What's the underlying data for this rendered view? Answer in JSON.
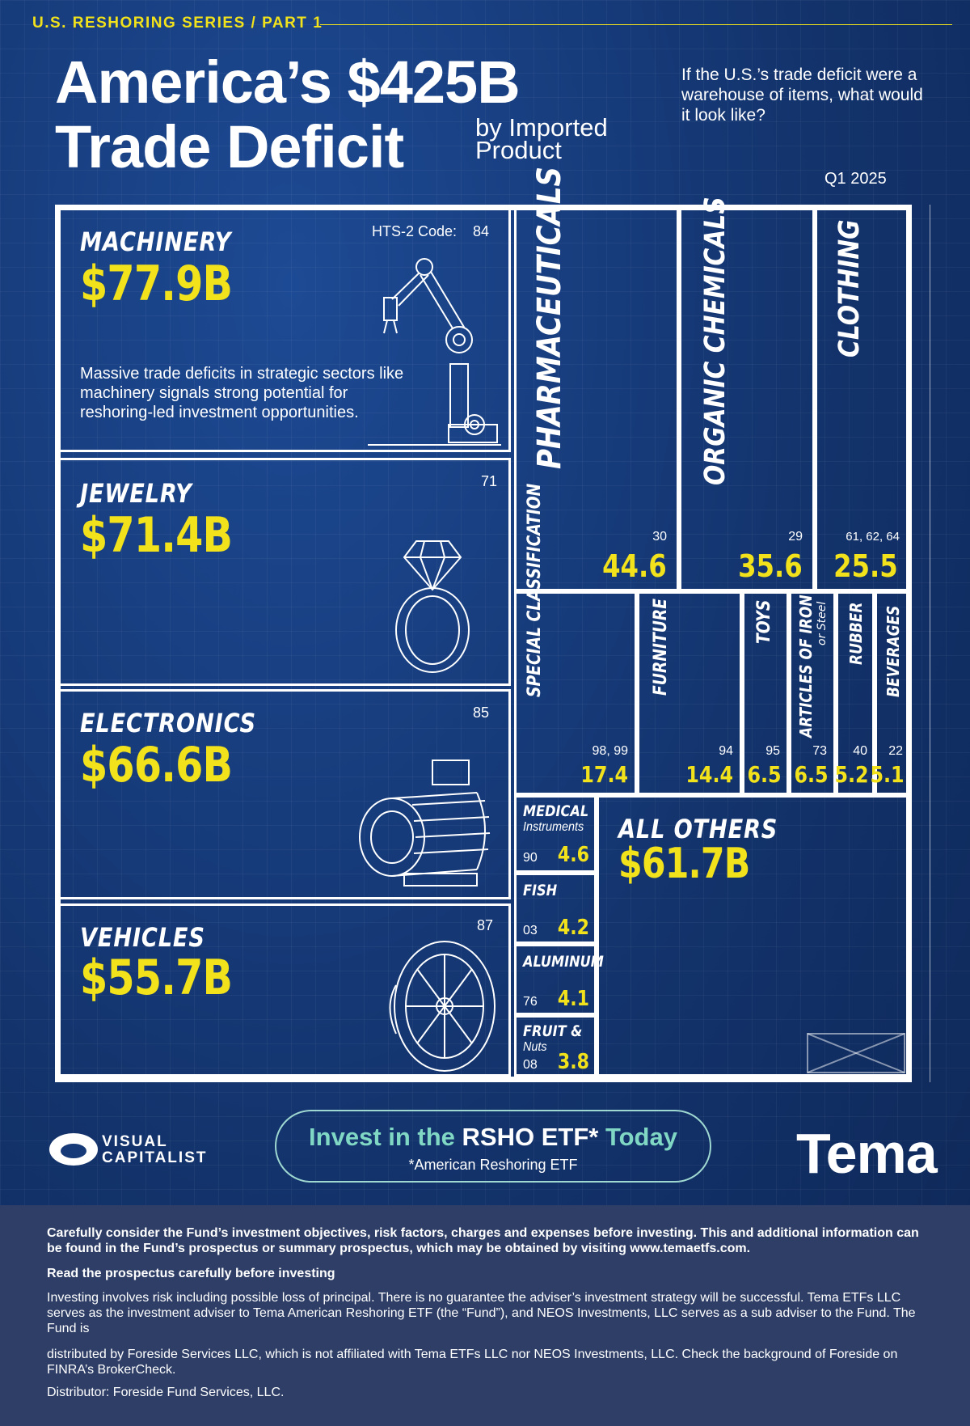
{
  "header": {
    "series": "U.S. RESHORING SERIES / PART 1",
    "title_line1": "America’s $425B",
    "title_line2": "Trade Deficit",
    "subtitle": "by Imported Product",
    "question": "If the U.S.’s trade deficit were a warehouse of items, what would it look like?",
    "period": "Q1 2025"
  },
  "chart_data": {
    "type": "treemap",
    "title": "America’s $425B Trade Deficit by Imported Product",
    "period": "Q1 2025",
    "unit": "$B",
    "code_label": "HTS-2 Code:",
    "items": [
      {
        "name": "MACHINERY",
        "code": "84",
        "value": 77.9,
        "label": "$77.9B"
      },
      {
        "name": "JEWELRY",
        "code": "71",
        "value": 71.4,
        "label": "$71.4B"
      },
      {
        "name": "ELECTRONICS",
        "code": "85",
        "value": 66.6,
        "label": "$66.6B"
      },
      {
        "name": "VEHICLES",
        "code": "87",
        "value": 55.7,
        "label": "$55.7B"
      },
      {
        "name": "PHARMACEUTICALS",
        "code": "30",
        "value": 44.6,
        "label": "44.6"
      },
      {
        "name": "ORGANIC CHEMICALS",
        "code": "29",
        "value": 35.6,
        "label": "35.6"
      },
      {
        "name": "CLOTHING",
        "code": "61, 62, 64",
        "value": 25.5,
        "label": "25.5"
      },
      {
        "name": "SPECIAL CLASSIFICATION",
        "code": "98, 99",
        "value": 17.4,
        "label": "17.4"
      },
      {
        "name": "FURNITURE",
        "code": "94",
        "value": 14.4,
        "label": "14.4"
      },
      {
        "name": "TOYS",
        "code": "95",
        "value": 6.5,
        "label": "6.5"
      },
      {
        "name": "ARTICLES OF IRON",
        "sub": "or Steel",
        "code": "73",
        "value": 6.5,
        "label": "6.5"
      },
      {
        "name": "RUBBER",
        "code": "40",
        "value": 5.2,
        "label": "5.2"
      },
      {
        "name": "BEVERAGES",
        "code": "22",
        "value": 5.1,
        "label": "5.1"
      },
      {
        "name": "MEDICAL",
        "sub": "Instruments",
        "code": "90",
        "value": 4.6,
        "label": "4.6"
      },
      {
        "name": "FISH",
        "code": "03",
        "value": 4.2,
        "label": "4.2"
      },
      {
        "name": "ALUMINUM",
        "code": "76",
        "value": 4.1,
        "label": "4.1"
      },
      {
        "name": "FRUIT &",
        "sub": "Nuts",
        "code": "08",
        "value": 3.8,
        "label": "3.8"
      },
      {
        "name": "ALL OTHERS",
        "value": 61.7,
        "label": "$61.7B"
      }
    ],
    "annotation": "Massive trade deficits in strategic sectors like machinery signals strong potential for reshoring-led investment opportunities."
  },
  "icons": [
    "robot-arm-icon",
    "diamond-ring-icon",
    "electric-motor-icon",
    "tire-icon"
  ],
  "colors": {
    "background": "#163a78",
    "accent": "#f2e21b",
    "cta": "#7fd7c4",
    "footer": "#2e3e66"
  },
  "branding": {
    "visual_capitalist_line1": "VISUAL",
    "visual_capitalist_line2": "CAPITALIST",
    "cta_before": "Invest in the ",
    "cta_highlight": "RSHO ETF*",
    "cta_after": " Today",
    "cta_sub": "*American Reshoring ETF",
    "tema": "Tema"
  },
  "disclaimer": {
    "p1": "Carefully consider the Fund’s investment objectives, risk factors, charges and expenses before investing. This and additional information can be found in the Fund’s prospectus or summary prospectus, which may be obtained by visiting www.temaetfs.com.",
    "p2": "Read the prospectus carefully before investing",
    "p3": "Investing involves risk including possible loss of principal. There is no guarantee the adviser’s investment strategy will be successful. Tema ETFs LLC serves as the investment adviser to Tema American Reshoring ETF (the “Fund”), and NEOS Investments, LLC serves as a sub adviser to the Fund. The Fund is",
    "p4": "distributed by Foreside Services LLC, which is not affiliated with Tema ETFs LLC nor NEOS Investments, LLC. Check the background of Foreside on FINRA’s BrokerCheck.",
    "p5": "Distributor: Foreside Fund Services, LLC."
  }
}
